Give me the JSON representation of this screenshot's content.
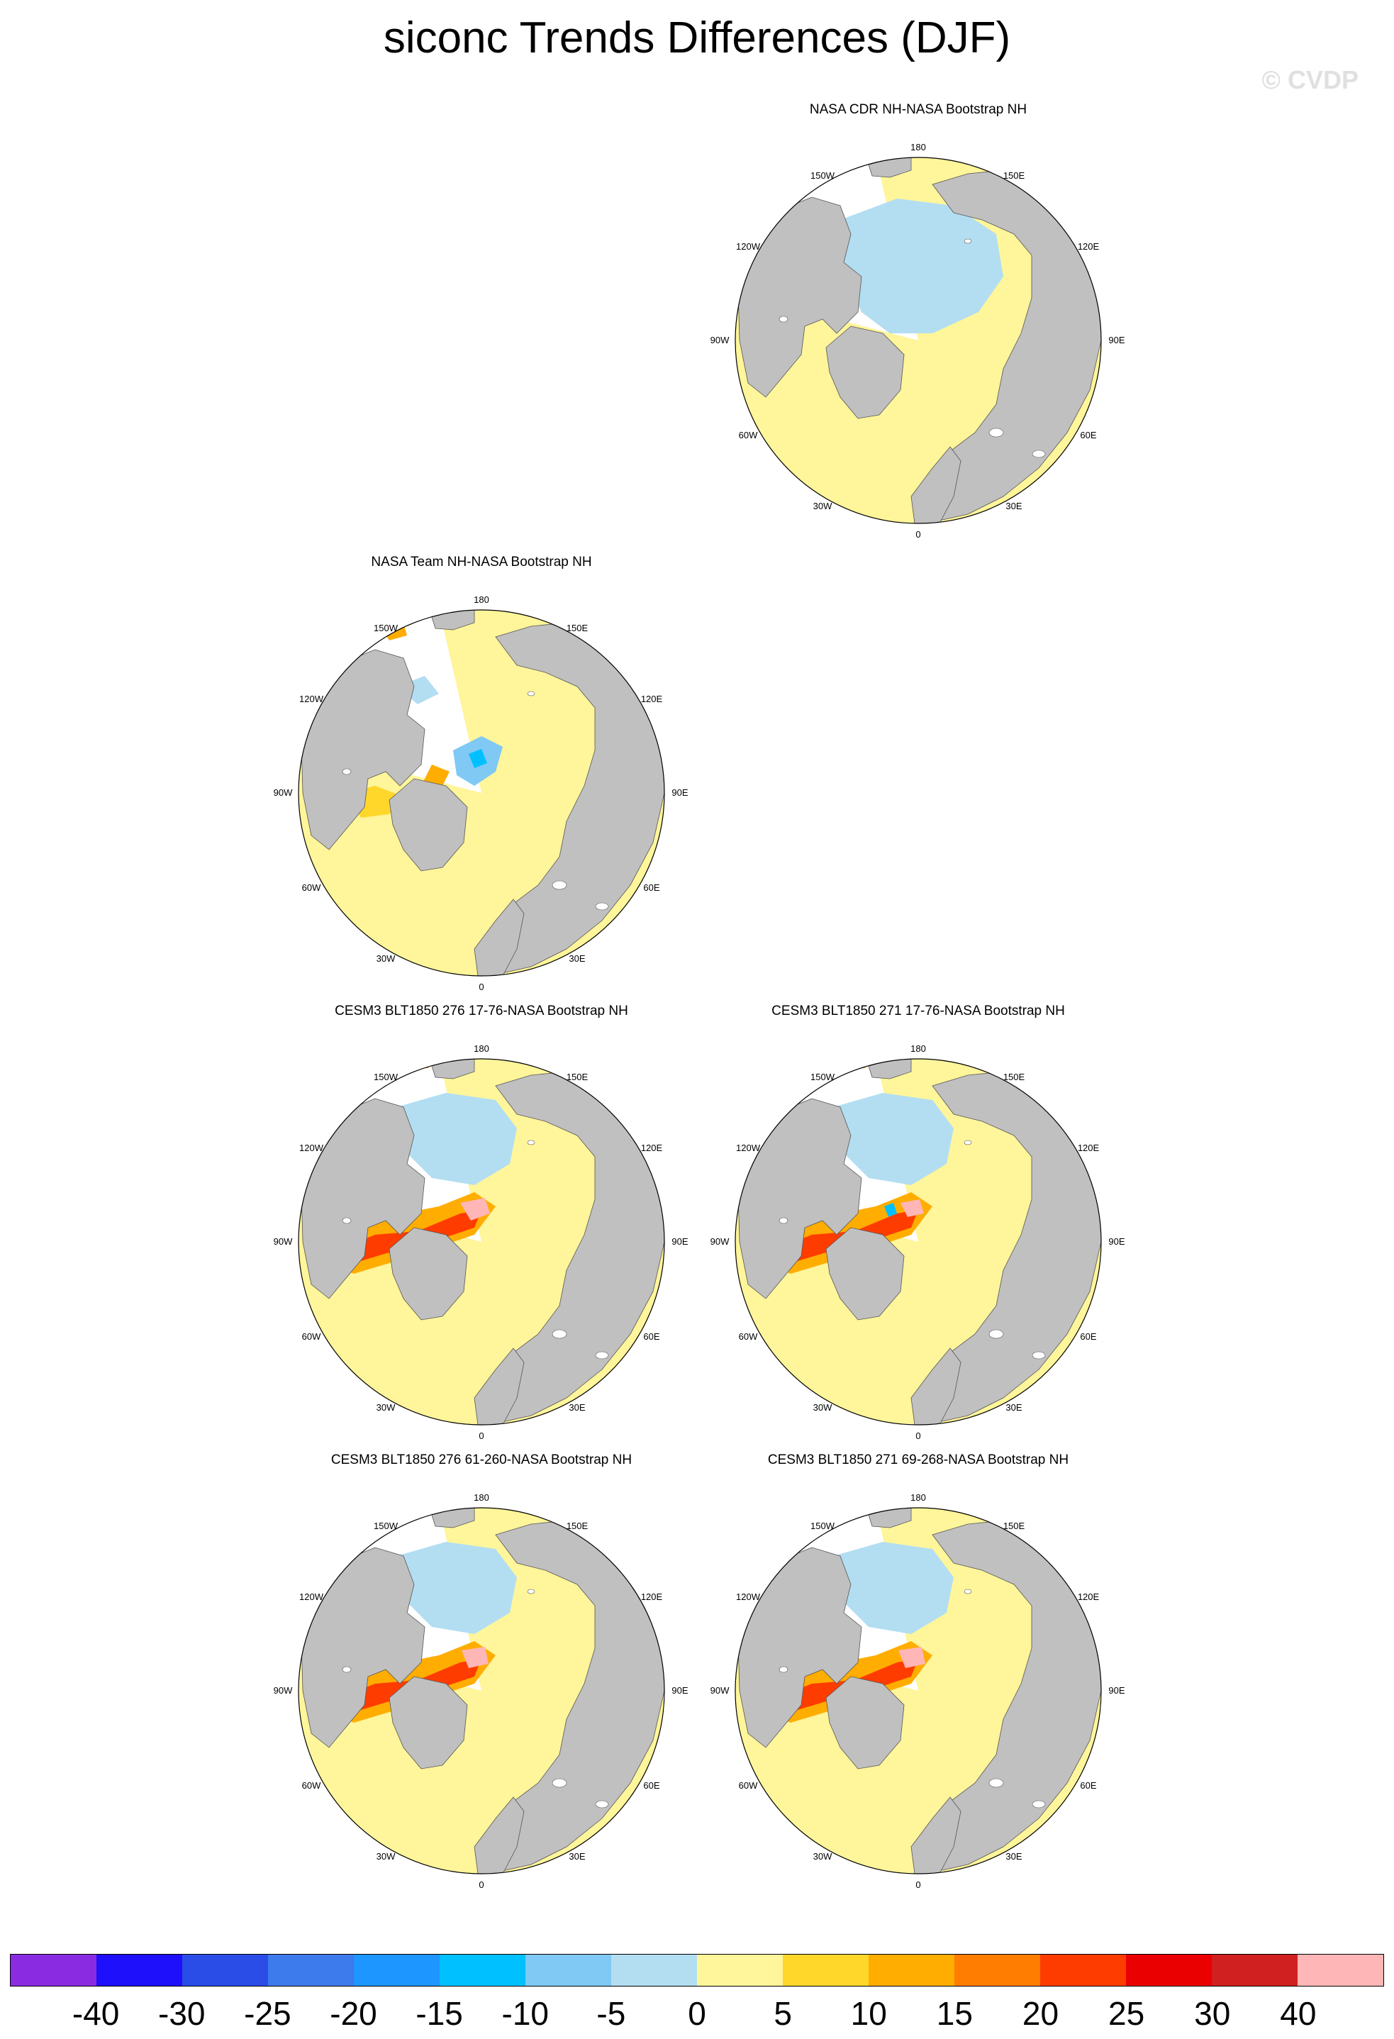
{
  "title": "siconc Trends Differences (DJF)",
  "watermark": "© CVDP",
  "lon_labels": {
    "top": "180",
    "bottom": "0",
    "upper_left": "150W",
    "upper_right": "150E",
    "mid_upper_left": "120W",
    "mid_upper_right": "120E",
    "left": "90W",
    "right": "90E",
    "mid_lower_left": "60W",
    "mid_lower_right": "60E",
    "lower_left": "30W",
    "lower_right": "30E"
  },
  "chart_data": {
    "type": "heatmap",
    "projection": "north-polar-stereographic",
    "season": "DJF",
    "variable": "siconc",
    "colorbar": {
      "colors": [
        "#8a2be2",
        "#1e10fa",
        "#2a4de8",
        "#3d7aeb",
        "#1e96ff",
        "#00c0ff",
        "#7fc9f4",
        "#b3def2",
        "#fff59a",
        "#ffd72b",
        "#ffad00",
        "#ff7d00",
        "#ff3c00",
        "#ea0000",
        "#d02020",
        "#ffb6b6"
      ],
      "tick_labels": [
        "-40",
        "-30",
        "-25",
        "-20",
        "-15",
        "-10",
        "-5",
        "0",
        "5",
        "10",
        "15",
        "20",
        "25",
        "30",
        "40"
      ]
    },
    "panels": [
      {
        "id": "cdr",
        "title": "NASA CDR NH-NASA Bootstrap NH",
        "pattern": "mostly slight decrease in central Arctic and Hudson Bay; slight increase in marginal seas"
      },
      {
        "id": "team",
        "title": "NASA Team NH-NASA Bootstrap NH",
        "pattern": "slight decrease in Canadian Archipelago and Kara Sea; increase in Labrador and Barents seas"
      },
      {
        "id": "m276a",
        "title": "CESM3 BLT1850 276 17-76-NASA Bootstrap NH",
        "pattern": "strong positive bias along Atlantic ice edge, Okhotsk and Bering seas"
      },
      {
        "id": "m271a",
        "title": "CESM3 BLT1850 271 17-76-NASA Bootstrap NH",
        "pattern": "strong positive bias along Atlantic ice edge, Okhotsk Sea"
      },
      {
        "id": "m276b",
        "title": "CESM3 BLT1850 276 61-260-NASA Bootstrap NH",
        "pattern": "strong positive bias along Atlantic ice edge, Okhotsk Sea"
      },
      {
        "id": "m271b",
        "title": "CESM3 BLT1850 271 69-268-NASA Bootstrap NH",
        "pattern": "strong positive bias along Atlantic ice edge, Okhotsk Sea"
      }
    ]
  }
}
